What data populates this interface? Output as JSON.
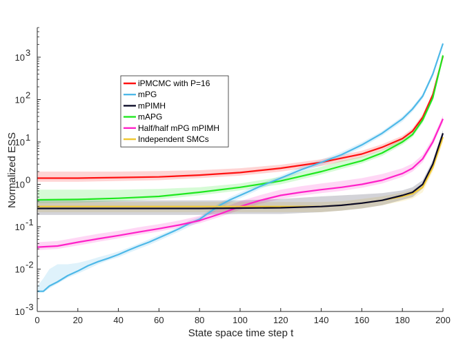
{
  "chart_data": {
    "type": "line",
    "title": "",
    "xlabel": "State space time step t",
    "ylabel": "Normalized ESS",
    "xlim": [
      0,
      200
    ],
    "ylim": [
      0.001,
      5000
    ],
    "yscale": "log",
    "grid": false,
    "legend_position": "upper-left-center",
    "x_ticks": [
      0,
      20,
      40,
      60,
      80,
      100,
      120,
      140,
      160,
      180,
      200
    ],
    "x_tick_labels": [
      "0",
      "20",
      "40",
      "60",
      "80",
      "100",
      "120",
      "140",
      "160",
      "180",
      "200"
    ],
    "y_ticks": [
      0.001,
      0.01,
      0.1,
      1,
      10,
      100,
      1000
    ],
    "y_tick_labels": [
      {
        "base": "10",
        "exp": "-3"
      },
      {
        "base": "10",
        "exp": "-2"
      },
      {
        "base": "10",
        "exp": "-1"
      },
      {
        "base": "10",
        "exp": "0"
      },
      {
        "base": "10",
        "exp": "1"
      },
      {
        "base": "10",
        "exp": "2"
      },
      {
        "base": "10",
        "exp": "3"
      }
    ],
    "series": [
      {
        "name": "iPMCMC with P=16",
        "color": "#ff1010",
        "x": [
          0,
          20,
          40,
          60,
          80,
          100,
          120,
          140,
          160,
          170,
          180,
          185,
          190,
          195,
          200
        ],
        "values": [
          1.4,
          1.4,
          1.45,
          1.5,
          1.65,
          1.9,
          2.4,
          3.3,
          5.2,
          7.5,
          12,
          18,
          38,
          130,
          1050
        ],
        "band_lower": [
          1.15,
          1.15,
          1.2,
          1.25,
          1.4,
          1.6,
          2.0,
          2.7,
          4.3,
          6.3,
          10,
          15,
          32,
          110,
          950
        ],
        "band_upper": [
          2.0,
          2.0,
          2.0,
          2.05,
          2.15,
          2.4,
          2.9,
          3.9,
          6.2,
          8.8,
          14,
          21,
          45,
          150,
          1150
        ]
      },
      {
        "name": "mPG",
        "color": "#4db8e8",
        "x": [
          0,
          3,
          6,
          10,
          15,
          20,
          25,
          30,
          35,
          40,
          45,
          50,
          55,
          60,
          65,
          70,
          75,
          80,
          85,
          90,
          95,
          100,
          105,
          110,
          120,
          130,
          140,
          150,
          160,
          170,
          180,
          185,
          190,
          195,
          200
        ],
        "values": [
          0.003,
          0.003,
          0.004,
          0.005,
          0.007,
          0.009,
          0.012,
          0.015,
          0.018,
          0.022,
          0.028,
          0.035,
          0.043,
          0.055,
          0.07,
          0.09,
          0.12,
          0.15,
          0.22,
          0.32,
          0.43,
          0.55,
          0.7,
          0.9,
          1.4,
          2.2,
          3.3,
          5.0,
          8.5,
          16,
          35,
          60,
          120,
          400,
          2100
        ],
        "band_lower": [
          0.0028,
          0.0028,
          0.0035,
          0.0045,
          0.0062,
          0.0078,
          0.01,
          0.013,
          0.016,
          0.019,
          0.024,
          0.03,
          0.037,
          0.047,
          0.06,
          0.077,
          0.1,
          0.13,
          0.19,
          0.27,
          0.37,
          0.47,
          0.6,
          0.78,
          1.2,
          1.9,
          2.8,
          4.3,
          7.3,
          14,
          30,
          52,
          105,
          350,
          1900
        ],
        "band_upper": [
          0.004,
          0.006,
          0.01,
          0.013,
          0.013,
          0.014,
          0.016,
          0.019,
          0.022,
          0.026,
          0.032,
          0.04,
          0.05,
          0.063,
          0.08,
          0.1,
          0.14,
          0.17,
          0.25,
          0.37,
          0.5,
          0.64,
          0.82,
          1.05,
          1.6,
          2.6,
          3.8,
          5.8,
          9.8,
          18,
          40,
          68,
          138,
          450,
          2300
        ]
      },
      {
        "name": "mPIMH",
        "color": "#0a0a28",
        "x": [
          0,
          20,
          40,
          60,
          80,
          100,
          120,
          140,
          150,
          160,
          170,
          180,
          185,
          190,
          195,
          200
        ],
        "values": [
          0.27,
          0.27,
          0.27,
          0.27,
          0.27,
          0.275,
          0.28,
          0.3,
          0.32,
          0.36,
          0.42,
          0.55,
          0.65,
          1.0,
          3.0,
          16
        ],
        "band_lower": [
          0.19,
          0.19,
          0.19,
          0.19,
          0.19,
          0.2,
          0.2,
          0.22,
          0.24,
          0.27,
          0.32,
          0.43,
          0.5,
          0.8,
          2.4,
          13
        ],
        "band_upper": [
          0.42,
          0.42,
          0.42,
          0.42,
          0.42,
          0.42,
          0.45,
          0.52,
          0.55,
          0.58,
          0.62,
          0.72,
          0.85,
          1.25,
          3.7,
          19
        ]
      },
      {
        "name": "mAPG",
        "color": "#1ee81e",
        "x": [
          0,
          20,
          40,
          60,
          80,
          100,
          120,
          140,
          150,
          160,
          170,
          180,
          185,
          190,
          195,
          200
        ],
        "values": [
          0.43,
          0.44,
          0.47,
          0.52,
          0.65,
          0.85,
          1.2,
          2.0,
          2.7,
          3.6,
          5.5,
          10,
          15,
          33,
          110,
          1100
        ],
        "band_lower": [
          0.36,
          0.37,
          0.4,
          0.44,
          0.55,
          0.72,
          1.0,
          1.7,
          2.3,
          3.1,
          4.7,
          8.6,
          13,
          28,
          95,
          950
        ],
        "band_upper": [
          0.75,
          0.75,
          0.75,
          0.78,
          0.85,
          1.05,
          1.5,
          2.6,
          3.6,
          4.5,
          6.5,
          12,
          18,
          39,
          130,
          1250
        ]
      },
      {
        "name": "Half/half mPG mPIMH",
        "color": "#ff20c8",
        "x": [
          0,
          10,
          20,
          30,
          40,
          50,
          60,
          70,
          80,
          90,
          100,
          110,
          120,
          130,
          140,
          150,
          160,
          170,
          180,
          185,
          190,
          195,
          200
        ],
        "values": [
          0.033,
          0.035,
          0.043,
          0.052,
          0.062,
          0.075,
          0.09,
          0.11,
          0.14,
          0.2,
          0.3,
          0.42,
          0.55,
          0.65,
          0.75,
          0.85,
          1.0,
          1.25,
          1.8,
          2.4,
          4.0,
          10,
          35
        ],
        "band_lower": [
          0.028,
          0.03,
          0.036,
          0.044,
          0.053,
          0.064,
          0.077,
          0.095,
          0.12,
          0.17,
          0.25,
          0.35,
          0.45,
          0.54,
          0.62,
          0.7,
          0.83,
          1.05,
          1.5,
          2.0,
          3.3,
          8.5,
          29
        ],
        "band_upper": [
          0.043,
          0.046,
          0.056,
          0.068,
          0.08,
          0.097,
          0.115,
          0.14,
          0.18,
          0.26,
          0.4,
          0.56,
          0.75,
          0.9,
          1.05,
          1.2,
          1.4,
          1.75,
          2.4,
          3.1,
          5.0,
          12.5,
          42
        ]
      },
      {
        "name": "Independent SMCs",
        "color": "#f0c832",
        "x": [
          0,
          20,
          40,
          60,
          80,
          100,
          120,
          140,
          150,
          160,
          170,
          180,
          185,
          190,
          195,
          200
        ],
        "values": [
          0.3,
          0.3,
          0.3,
          0.3,
          0.3,
          0.3,
          0.3,
          0.3,
          0.32,
          0.36,
          0.42,
          0.52,
          0.6,
          0.85,
          2.5,
          13
        ],
        "band_lower": [
          0.22,
          0.22,
          0.22,
          0.22,
          0.22,
          0.22,
          0.22,
          0.22,
          0.24,
          0.27,
          0.32,
          0.4,
          0.46,
          0.65,
          2.0,
          10
        ],
        "band_upper": [
          0.38,
          0.38,
          0.38,
          0.38,
          0.38,
          0.38,
          0.38,
          0.38,
          0.4,
          0.45,
          0.52,
          0.64,
          0.74,
          1.05,
          3.1,
          16
        ]
      }
    ],
    "draw_order": [
      0,
      3,
      1,
      4,
      5,
      2
    ],
    "legend_order": [
      0,
      1,
      2,
      3,
      4,
      5
    ]
  }
}
